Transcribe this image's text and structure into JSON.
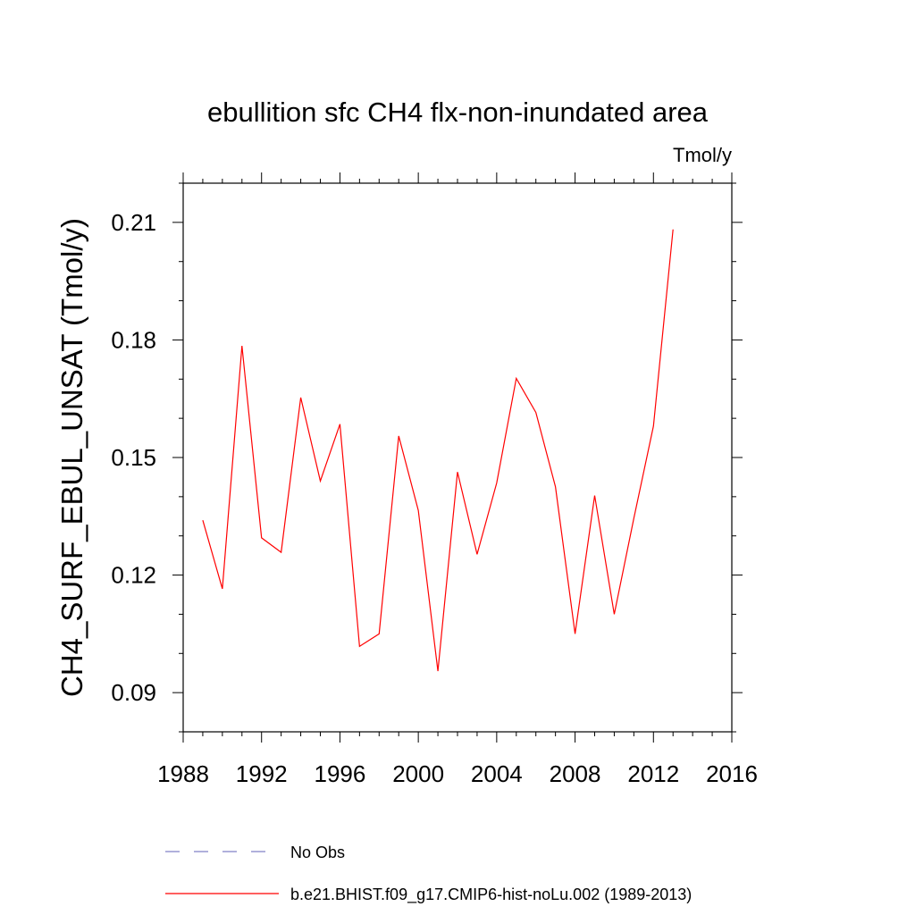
{
  "chart_data": {
    "type": "line",
    "title": "ebullition sfc CH4 flx-non-inundated area",
    "units": "Tmol/y",
    "ylabel": "CH4_SURF_EBUL_UNSAT  (Tmol/y)",
    "xlabel": "",
    "xlim": [
      1988,
      2016
    ],
    "ylim": [
      0.08,
      0.22
    ],
    "x_ticks": [
      1988,
      1992,
      1996,
      2000,
      2004,
      2008,
      2012,
      2016
    ],
    "x_tick_labels": [
      "1988",
      "1992",
      "1996",
      "2000",
      "2004",
      "2008",
      "2012",
      "2016"
    ],
    "y_ticks": [
      0.09,
      0.12,
      0.15,
      0.18,
      0.21
    ],
    "y_tick_labels": [
      "0.09",
      "0.12",
      "0.15",
      "0.18",
      "0.21"
    ],
    "grid": false,
    "legend_position": "bottom",
    "series": [
      {
        "name": "No Obs",
        "color": "#8080c8",
        "dash": "dashed",
        "x": [],
        "y": []
      },
      {
        "name": "b.e21.BHIST.f09_g17.CMIP6-hist-noLu.002 (1989-2013)",
        "color": "#ff0000",
        "dash": "solid",
        "x": [
          1989,
          1990,
          1991,
          1992,
          1993,
          1994,
          1995,
          1996,
          1997,
          1998,
          1999,
          2000,
          2001,
          2002,
          2003,
          2004,
          2005,
          2006,
          2007,
          2008,
          2009,
          2010,
          2011,
          2012,
          2013
        ],
        "y": [
          0.134,
          0.1165,
          0.1785,
          0.1295,
          0.1258,
          0.1653,
          0.144,
          0.1585,
          0.1018,
          0.105,
          0.1555,
          0.1365,
          0.0955,
          0.1463,
          0.1253,
          0.1435,
          0.1702,
          0.1615,
          0.1425,
          0.105,
          0.1403,
          0.11,
          0.1345,
          0.158,
          0.2082
        ]
      }
    ]
  }
}
